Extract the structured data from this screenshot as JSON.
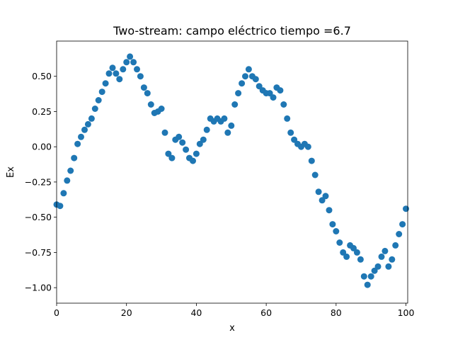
{
  "chart_data": {
    "type": "scatter",
    "title": "Two-stream: campo eléctrico  tiempo =6.7",
    "xlabel": "x",
    "ylabel": "Ex",
    "xlim": [
      0,
      100.5
    ],
    "ylim": [
      -1.11,
      0.75
    ],
    "grid": false,
    "marker_color": "#1f77b4",
    "x_ticks": [
      0,
      20,
      40,
      60,
      80,
      100
    ],
    "x_tick_labels": [
      "0",
      "20",
      "40",
      "60",
      "80",
      "100"
    ],
    "y_ticks": [
      0.5,
      0.25,
      0.0,
      -0.25,
      -0.5,
      -0.75,
      -1.0
    ],
    "y_tick_labels": [
      "0.50",
      "0.25",
      "0.00",
      "−0.25",
      "−0.50",
      "−0.75",
      "−1.00"
    ],
    "series": [
      {
        "x": [
          0,
          1,
          2,
          3,
          4,
          5,
          6,
          7,
          8,
          9,
          10,
          11,
          12,
          13,
          14,
          15,
          16,
          17,
          18,
          19,
          20,
          21,
          22,
          23,
          24,
          25,
          26,
          27,
          28,
          29,
          30,
          31,
          32,
          33,
          34,
          35,
          36,
          37,
          38,
          39,
          40,
          41,
          42,
          43,
          44,
          45,
          46,
          47,
          48,
          49,
          50,
          51,
          52,
          53,
          54,
          55,
          56,
          57,
          58,
          59,
          60,
          61,
          62,
          63,
          64,
          65,
          66,
          67,
          68,
          69,
          70,
          71,
          72,
          73,
          74,
          75,
          76,
          77,
          78,
          79,
          80,
          81,
          82,
          83,
          84,
          85,
          86,
          87,
          88,
          89,
          90,
          91,
          92,
          93,
          94,
          95,
          96,
          97,
          98,
          99,
          100
        ],
        "y": [
          -0.41,
          -0.42,
          -0.33,
          -0.24,
          -0.17,
          -0.08,
          0.02,
          0.07,
          0.12,
          0.16,
          0.2,
          0.27,
          0.33,
          0.39,
          0.45,
          0.52,
          0.56,
          0.52,
          0.48,
          0.55,
          0.6,
          0.64,
          0.6,
          0.55,
          0.5,
          0.42,
          0.38,
          0.3,
          0.24,
          0.25,
          0.27,
          0.1,
          -0.05,
          -0.08,
          0.05,
          0.07,
          0.03,
          -0.02,
          -0.08,
          -0.1,
          -0.05,
          0.02,
          0.05,
          0.12,
          0.2,
          0.18,
          0.2,
          0.18,
          0.2,
          0.1,
          0.15,
          0.3,
          0.38,
          0.45,
          0.5,
          0.55,
          0.5,
          0.48,
          0.43,
          0.4,
          0.38,
          0.38,
          0.35,
          0.42,
          0.4,
          0.3,
          0.2,
          0.1,
          0.05,
          0.02,
          0.0,
          0.02,
          0.0,
          -0.1,
          -0.2,
          -0.32,
          -0.38,
          -0.35,
          -0.45,
          -0.55,
          -0.6,
          -0.68,
          -0.75,
          -0.78,
          -0.7,
          -0.72,
          -0.75,
          -0.8,
          -0.92,
          -0.98,
          -0.92,
          -0.88,
          -0.85,
          -0.78,
          -0.74,
          -0.85,
          -0.8,
          -0.7,
          -0.62,
          -0.55,
          -0.44
        ]
      }
    ]
  }
}
